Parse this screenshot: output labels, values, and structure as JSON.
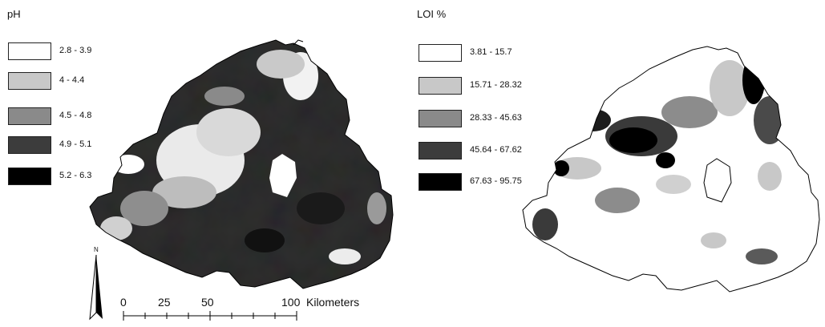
{
  "maps": [
    {
      "title": "pH",
      "legend": [
        {
          "label": "2.8 - 3.9",
          "color": "#ffffff"
        },
        {
          "label": "4 - 4.4",
          "color": "#c8c8c8"
        },
        {
          "label": "4.5 - 4.8",
          "color": "#8a8a8a"
        },
        {
          "label": "4.9 - 5.1",
          "color": "#3c3c3c"
        },
        {
          "label": "5.2 - 6.3",
          "color": "#000000"
        }
      ]
    },
    {
      "title": "LOI %",
      "legend": [
        {
          "label": "3.81 - 15.7",
          "color": "#ffffff"
        },
        {
          "label": "15.71 - 28.32",
          "color": "#c8c8c8"
        },
        {
          "label": "28.33 - 45.63",
          "color": "#8a8a8a"
        },
        {
          "label": "45.64 - 67.62",
          "color": "#3c3c3c"
        },
        {
          "label": "67.63 - 95.75",
          "color": "#000000"
        }
      ]
    }
  ],
  "scale_bar": {
    "ticks": [
      "0",
      "25",
      "50",
      "100"
    ],
    "unit": "Kilometers"
  },
  "north_arrow": {
    "label": "N",
    "icon": "north-arrow-icon"
  }
}
